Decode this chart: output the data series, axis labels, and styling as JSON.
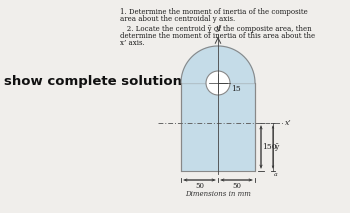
{
  "title_line1": "1. Determine the moment of inertia of the composite",
  "title_line2": "area about the centroidal y axis.",
  "sub_line1": "   2. Locate the centroid ȳ of the composite area, then",
  "sub_line2": "determine the moment of inertia of this area about the",
  "sub_line3": "x’ axis.",
  "show_text": "show complete solution",
  "dim_label": "Dimensions in mm",
  "label_15": "15",
  "label_150": "150",
  "label_50": "50",
  "label_x": "x’",
  "label_ybar": "ȳ",
  "label_a": "a",
  "bg_color": "#f0eeeb",
  "shape_fill": "#c5dce8",
  "edge_color": "#888888"
}
